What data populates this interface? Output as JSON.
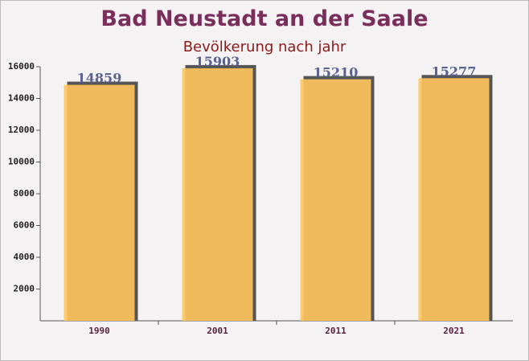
{
  "chart_data": {
    "type": "bar",
    "title": "Bad Neustadt an der Saale",
    "subtitle": "Bevölkerung nach jahr",
    "categories": [
      "1990",
      "2001",
      "2011",
      "2021"
    ],
    "values": [
      14859,
      15903,
      15210,
      15277
    ],
    "color": "#ffc55c",
    "ylim": [
      0,
      16000
    ],
    "yticks": [
      2000,
      4000,
      6000,
      8000,
      10000,
      12000,
      14000,
      16000
    ]
  }
}
